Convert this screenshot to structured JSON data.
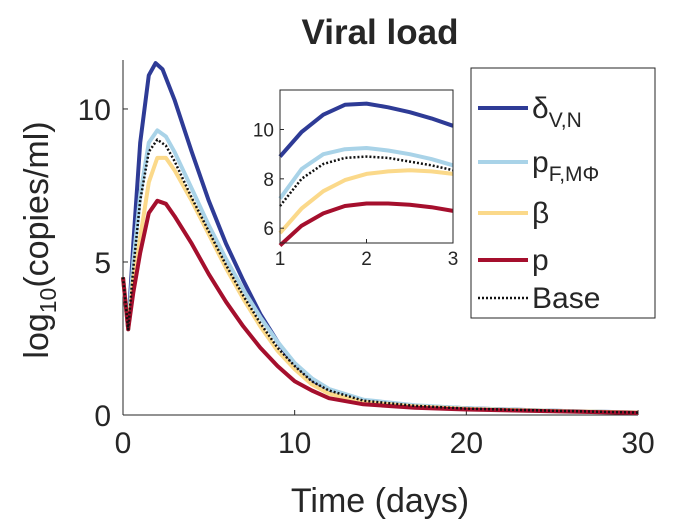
{
  "chart_data": {
    "type": "line",
    "title": "Viral load",
    "xlabel": "Time (days)",
    "ylabel": {
      "base": "log",
      "sub": "10",
      "rest": "(copies/ml)"
    },
    "xlim": [
      0,
      30
    ],
    "ylim": [
      0,
      11.6
    ],
    "xticks": [
      0,
      10,
      20,
      30
    ],
    "yticks": [
      0,
      5,
      10
    ],
    "grid": false,
    "legend_position": "top-right",
    "series": [
      {
        "id": "delta",
        "legend": {
          "base": "δ",
          "sub": "V,N"
        },
        "color": "#2e3b96",
        "style": "solid",
        "points": [
          [
            0,
            4.5
          ],
          [
            0.3,
            2.8
          ],
          [
            0.6,
            5.6
          ],
          [
            1,
            8.9
          ],
          [
            1.5,
            11.1
          ],
          [
            1.9,
            11.5
          ],
          [
            2.3,
            11.3
          ],
          [
            3,
            10.3
          ],
          [
            4,
            8.6
          ],
          [
            5,
            7.0
          ],
          [
            6,
            5.6
          ],
          [
            7,
            4.4
          ],
          [
            8,
            3.3
          ],
          [
            9,
            2.4
          ],
          [
            10,
            1.6
          ],
          [
            11,
            1.1
          ],
          [
            12,
            0.75
          ],
          [
            14,
            0.45
          ],
          [
            17,
            0.3
          ],
          [
            20,
            0.22
          ],
          [
            25,
            0.14
          ],
          [
            30,
            0.08
          ]
        ]
      },
      {
        "id": "pf",
        "legend": {
          "base": "p",
          "sub": "F,MΦ"
        },
        "color": "#a9d3e8",
        "style": "solid",
        "points": [
          [
            0,
            4.5
          ],
          [
            0.3,
            2.8
          ],
          [
            0.6,
            5.0
          ],
          [
            1,
            7.2
          ],
          [
            1.5,
            8.9
          ],
          [
            2,
            9.3
          ],
          [
            2.5,
            9.1
          ],
          [
            3,
            8.6
          ],
          [
            4,
            7.4
          ],
          [
            5,
            6.2
          ],
          [
            6,
            5.1
          ],
          [
            7,
            4.1
          ],
          [
            8,
            3.2
          ],
          [
            9,
            2.4
          ],
          [
            10,
            1.7
          ],
          [
            11,
            1.2
          ],
          [
            12,
            0.85
          ],
          [
            14,
            0.5
          ],
          [
            17,
            0.32
          ],
          [
            20,
            0.22
          ],
          [
            25,
            0.14
          ],
          [
            30,
            0.08
          ]
        ]
      },
      {
        "id": "beta",
        "legend": {
          "base": "β",
          "sub": ""
        },
        "color": "#fbd98a",
        "style": "solid",
        "points": [
          [
            0,
            4.5
          ],
          [
            0.3,
            2.8
          ],
          [
            0.6,
            4.4
          ],
          [
            1,
            5.8
          ],
          [
            1.5,
            7.6
          ],
          [
            2,
            8.4
          ],
          [
            2.5,
            8.4
          ],
          [
            3,
            8.0
          ],
          [
            4,
            7.0
          ],
          [
            5,
            5.9
          ],
          [
            6,
            4.8
          ],
          [
            7,
            3.8
          ],
          [
            8,
            2.9
          ],
          [
            9,
            2.1
          ],
          [
            10,
            1.5
          ],
          [
            11,
            1.0
          ],
          [
            12,
            0.7
          ],
          [
            14,
            0.42
          ],
          [
            17,
            0.28
          ],
          [
            20,
            0.2
          ],
          [
            25,
            0.13
          ],
          [
            30,
            0.08
          ]
        ]
      },
      {
        "id": "p",
        "legend": {
          "base": "p",
          "sub": ""
        },
        "color": "#a50f2d",
        "style": "solid",
        "points": [
          [
            0,
            4.5
          ],
          [
            0.3,
            2.8
          ],
          [
            0.6,
            4.0
          ],
          [
            1,
            5.3
          ],
          [
            1.5,
            6.6
          ],
          [
            2,
            7.0
          ],
          [
            2.5,
            6.9
          ],
          [
            3,
            6.5
          ],
          [
            4,
            5.6
          ],
          [
            5,
            4.6
          ],
          [
            6,
            3.7
          ],
          [
            7,
            2.9
          ],
          [
            8,
            2.2
          ],
          [
            9,
            1.6
          ],
          [
            10,
            1.1
          ],
          [
            11,
            0.8
          ],
          [
            12,
            0.55
          ],
          [
            14,
            0.35
          ],
          [
            17,
            0.24
          ],
          [
            20,
            0.18
          ],
          [
            25,
            0.12
          ],
          [
            30,
            0.07
          ]
        ]
      },
      {
        "id": "base",
        "legend": {
          "base": "Base",
          "sub": ""
        },
        "color": "#111111",
        "style": "dotted",
        "points": [
          [
            0,
            4.5
          ],
          [
            0.3,
            2.8
          ],
          [
            0.6,
            4.8
          ],
          [
            1,
            7.0
          ],
          [
            1.5,
            8.6
          ],
          [
            2,
            9.0
          ],
          [
            2.5,
            8.8
          ],
          [
            3,
            8.3
          ],
          [
            4,
            7.1
          ],
          [
            5,
            6.0
          ],
          [
            6,
            4.9
          ],
          [
            7,
            3.9
          ],
          [
            8,
            3.0
          ],
          [
            9,
            2.2
          ],
          [
            10,
            1.6
          ],
          [
            11,
            1.1
          ],
          [
            12,
            0.8
          ],
          [
            14,
            0.47
          ],
          [
            17,
            0.3
          ],
          [
            20,
            0.21
          ],
          [
            25,
            0.14
          ],
          [
            30,
            0.08
          ]
        ]
      }
    ],
    "inset": {
      "xlim": [
        1,
        3
      ],
      "ylim": [
        5.4,
        11.6
      ],
      "xticks": [
        1,
        2,
        3
      ],
      "yticks": [
        6,
        8,
        10
      ],
      "series": [
        {
          "id": "delta",
          "color": "#2e3b96",
          "style": "solid",
          "points": [
            [
              1,
              8.9
            ],
            [
              1.25,
              9.9
            ],
            [
              1.5,
              10.6
            ],
            [
              1.75,
              11.0
            ],
            [
              2,
              11.05
            ],
            [
              2.25,
              10.9
            ],
            [
              2.5,
              10.7
            ],
            [
              2.75,
              10.45
            ],
            [
              3,
              10.15
            ]
          ]
        },
        {
          "id": "pf",
          "color": "#a9d3e8",
          "style": "solid",
          "points": [
            [
              1,
              7.2
            ],
            [
              1.25,
              8.4
            ],
            [
              1.5,
              9.0
            ],
            [
              1.75,
              9.2
            ],
            [
              2,
              9.25
            ],
            [
              2.25,
              9.15
            ],
            [
              2.5,
              9.0
            ],
            [
              2.75,
              8.8
            ],
            [
              3,
              8.55
            ]
          ]
        },
        {
          "id": "beta",
          "color": "#fbd98a",
          "style": "solid",
          "points": [
            [
              1,
              5.8
            ],
            [
              1.25,
              6.8
            ],
            [
              1.5,
              7.5
            ],
            [
              1.75,
              7.95
            ],
            [
              2,
              8.2
            ],
            [
              2.25,
              8.3
            ],
            [
              2.5,
              8.35
            ],
            [
              2.75,
              8.3
            ],
            [
              3,
              8.2
            ]
          ]
        },
        {
          "id": "p",
          "color": "#a50f2d",
          "style": "solid",
          "points": [
            [
              1,
              5.3
            ],
            [
              1.25,
              6.1
            ],
            [
              1.5,
              6.6
            ],
            [
              1.75,
              6.9
            ],
            [
              2,
              7.0
            ],
            [
              2.25,
              7.0
            ],
            [
              2.5,
              6.95
            ],
            [
              2.75,
              6.85
            ],
            [
              3,
              6.7
            ]
          ]
        },
        {
          "id": "base",
          "color": "#111111",
          "style": "dotted",
          "points": [
            [
              1,
              6.9
            ],
            [
              1.25,
              8.0
            ],
            [
              1.5,
              8.6
            ],
            [
              1.75,
              8.85
            ],
            [
              2,
              8.9
            ],
            [
              2.25,
              8.85
            ],
            [
              2.5,
              8.7
            ],
            [
              2.75,
              8.55
            ],
            [
              3,
              8.35
            ]
          ]
        }
      ]
    }
  }
}
